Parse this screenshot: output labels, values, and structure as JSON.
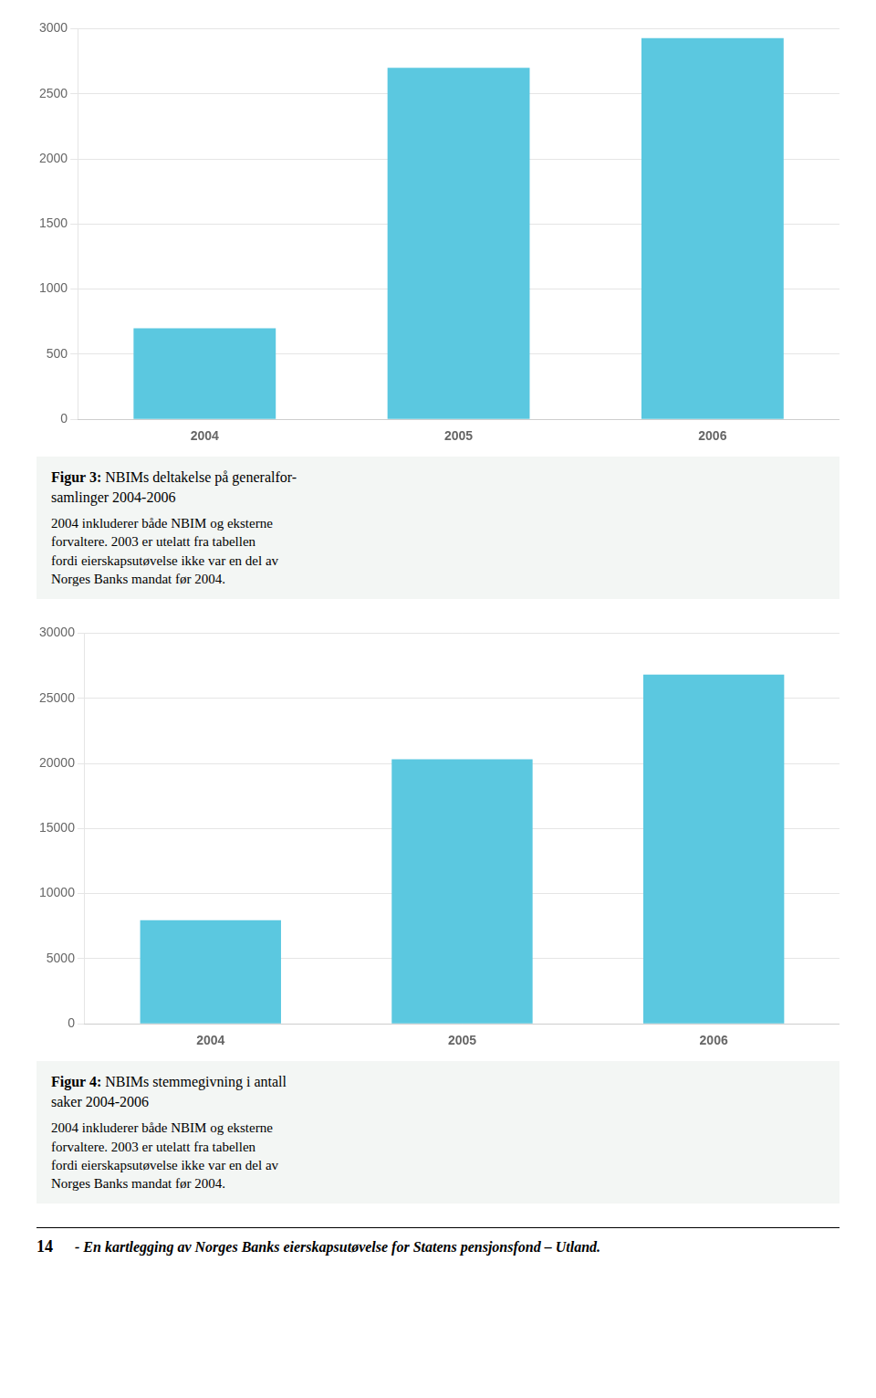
{
  "chart_data": [
    {
      "type": "bar",
      "title": "Figur 3: NBIMs deltakelse på generalfor-\nsamlinger 2004-2006",
      "subtitle": "2004 inkluderer både NBIM og eksterne\nforvaltere. 2003 er utelatt fra tabellen\nfordi eierskapsutøvelse ikke var en del av\nNorges Banks mandat før 2004.",
      "categories": [
        "2004",
        "2005",
        "2006"
      ],
      "values": [
        700,
        2700,
        2928
      ],
      "color": "#5bc8e0",
      "ylim": [
        0,
        3000
      ],
      "yticks": [
        0,
        500,
        1000,
        1500,
        2000,
        2500,
        3000
      ],
      "grid": true
    },
    {
      "type": "bar",
      "title": "Figur 4: NBIMs stemmegivning i antall\nsaker 2004-2006",
      "subtitle": "2004 inkluderer både NBIM og eksterne\nforvaltere. 2003 er utelatt fra tabellen\nfordi eierskapsutøvelse ikke var en del av\nNorges Banks mandat før 2004.",
      "categories": [
        "2004",
        "2005",
        "2006"
      ],
      "values": [
        7950,
        20307,
        26826
      ],
      "color": "#5bc8e0",
      "ylim": [
        0,
        30000
      ],
      "yticks": [
        0,
        5000,
        10000,
        15000,
        20000,
        25000,
        30000
      ],
      "grid": true
    }
  ],
  "annotations": [
    "14",
    "- En kartlegging av Norges Banks eierskapsutøvelse for Statens pensjonsfond – Utland."
  ]
}
